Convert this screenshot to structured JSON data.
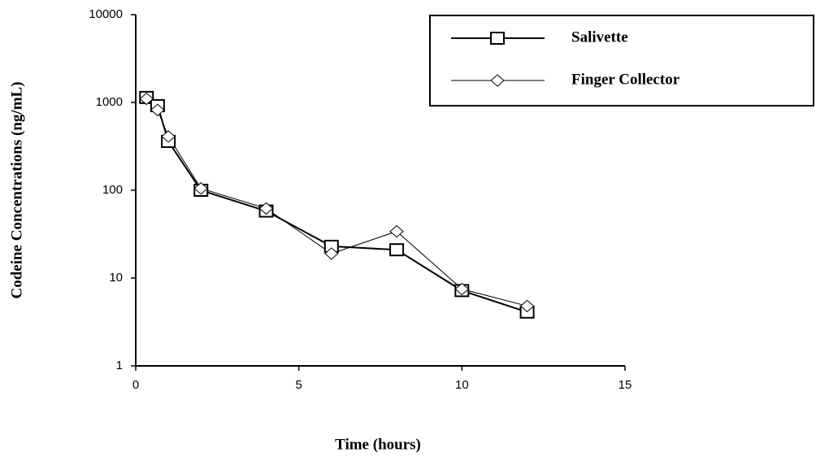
{
  "chart_data": {
    "type": "line",
    "x_label": "Time (hours)",
    "y_label": "Codeine Concentrations (ng/mL)",
    "yscale": "log",
    "xlim": [
      0,
      15
    ],
    "xticks": [
      0,
      5,
      10,
      15
    ],
    "ylim": [
      1,
      10000
    ],
    "yticks": [
      1,
      10,
      100,
      1000,
      10000
    ],
    "legend": "upper right",
    "x": [
      0.33,
      0.67,
      1,
      2,
      4,
      6,
      8,
      10,
      12
    ],
    "series": [
      {
        "name": "Salivette",
        "color": "#000000",
        "marker": "square",
        "values": [
          1140,
          920,
          360,
          100,
          58,
          23,
          21,
          7.2,
          4.1
        ]
      },
      {
        "name": "Finger Collector",
        "color": "#000000",
        "marker": "diamond",
        "values": [
          1100,
          820,
          410,
          105,
          62,
          19,
          34,
          7.5,
          4.8
        ]
      }
    ]
  }
}
